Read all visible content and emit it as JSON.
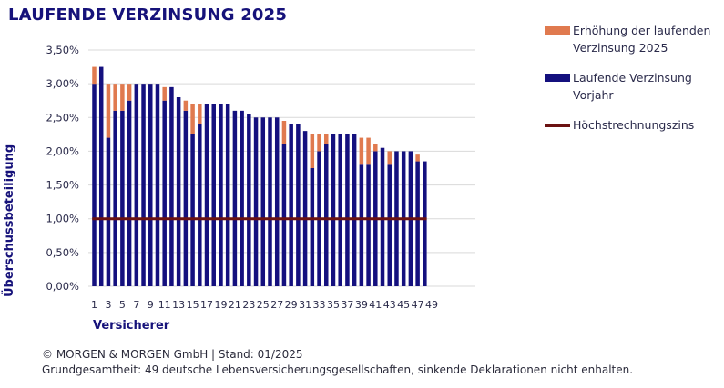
{
  "chart_data": {
    "type": "bar",
    "stacked": true,
    "title": "LAUFENDE VERZINSUNG 2025",
    "xlabel": "Versicherer",
    "ylabel": "Überschussbeteiligung",
    "ylim": [
      0,
      3.5
    ],
    "yticks": [
      "0,00%",
      "0,50%",
      "1,00%",
      "1,50%",
      "2,00%",
      "2,50%",
      "3,00%",
      "3,50%"
    ],
    "ytick_values": [
      0,
      0.5,
      1.0,
      1.5,
      2.0,
      2.5,
      3.0,
      3.5
    ],
    "grid": true,
    "categories": [
      1,
      2,
      3,
      4,
      5,
      6,
      7,
      8,
      9,
      10,
      11,
      12,
      13,
      14,
      15,
      16,
      17,
      18,
      19,
      20,
      21,
      22,
      23,
      24,
      25,
      26,
      27,
      28,
      29,
      30,
      31,
      32,
      33,
      34,
      35,
      36,
      37,
      38,
      39,
      40,
      41,
      42,
      43,
      44,
      45,
      46,
      47,
      48,
      49
    ],
    "xtick_labels": [
      "1",
      "3",
      "5",
      "7",
      "9",
      "11",
      "13",
      "15",
      "17",
      "19",
      "21",
      "23",
      "25",
      "27",
      "29",
      "31",
      "33",
      "35",
      "37",
      "39",
      "41",
      "43",
      "45",
      "47",
      "49"
    ],
    "series": [
      {
        "name": "Laufende Verzinsung Vorjahr",
        "color": "#14107e",
        "values": [
          3.0,
          3.25,
          2.2,
          2.6,
          2.6,
          2.75,
          3.0,
          3.0,
          3.0,
          3.0,
          2.75,
          2.95,
          2.8,
          2.6,
          2.25,
          2.4,
          2.7,
          2.7,
          2.7,
          2.7,
          2.6,
          2.6,
          2.55,
          2.5,
          2.5,
          2.5,
          2.5,
          2.1,
          2.4,
          2.4,
          2.3,
          1.75,
          2.0,
          2.1,
          2.25,
          2.25,
          2.25,
          2.25,
          1.8,
          1.8,
          2.0,
          2.05,
          1.8,
          2.0,
          2.0,
          2.0,
          1.85,
          1.85,
          null
        ]
      },
      {
        "name": "Erhöhung der laufenden Verzinsung 2025",
        "color": "#e07a4f",
        "values": [
          0.25,
          0,
          0.8,
          0.4,
          0.4,
          0.25,
          0,
          0,
          0,
          0,
          0.2,
          0,
          0,
          0.15,
          0.45,
          0.3,
          0,
          0,
          0,
          0,
          0,
          0,
          0,
          0,
          0,
          0,
          0,
          0.35,
          0,
          0,
          0,
          0.5,
          0.25,
          0.15,
          0,
          0,
          0,
          0,
          0.4,
          0.4,
          0.1,
          0,
          0.2,
          0,
          0,
          0,
          0.1,
          0,
          null
        ]
      },
      {
        "name": "Höchstrechnungszins",
        "type": "line",
        "color": "#6b1212",
        "values": [
          1.0,
          1.0,
          1.0,
          1.0,
          1.0,
          1.0,
          1.0,
          1.0,
          1.0,
          1.0,
          1.0,
          1.0,
          1.0,
          1.0,
          1.0,
          1.0,
          1.0,
          1.0,
          1.0,
          1.0,
          1.0,
          1.0,
          1.0,
          1.0,
          1.0,
          1.0,
          1.0,
          1.0,
          1.0,
          1.0,
          1.0,
          1.0,
          1.0,
          1.0,
          1.0,
          1.0,
          1.0,
          1.0,
          1.0,
          1.0,
          1.0,
          1.0,
          1.0,
          1.0,
          1.0,
          1.0,
          1.0,
          1.0,
          null
        ]
      }
    ],
    "legend": {
      "placement": "top-right",
      "entries": [
        {
          "label": "Erhöhung der laufenden Verzinsung 2025",
          "color": "#e07a4f",
          "kind": "bar"
        },
        {
          "label": "Laufende Verzinsung Vorjahr",
          "color": "#14107e",
          "kind": "bar"
        },
        {
          "label": "Höchstrechnungszins",
          "color": "#6b1212",
          "kind": "line"
        }
      ]
    }
  },
  "footer": {
    "line1": "© MORGEN & MORGEN GmbH | Stand: 01/2025",
    "line2": "Grundgesamtheit: 49 deutsche Lebensversicherungsgesellschaften, sinkende Deklarationen nicht enhalten."
  }
}
